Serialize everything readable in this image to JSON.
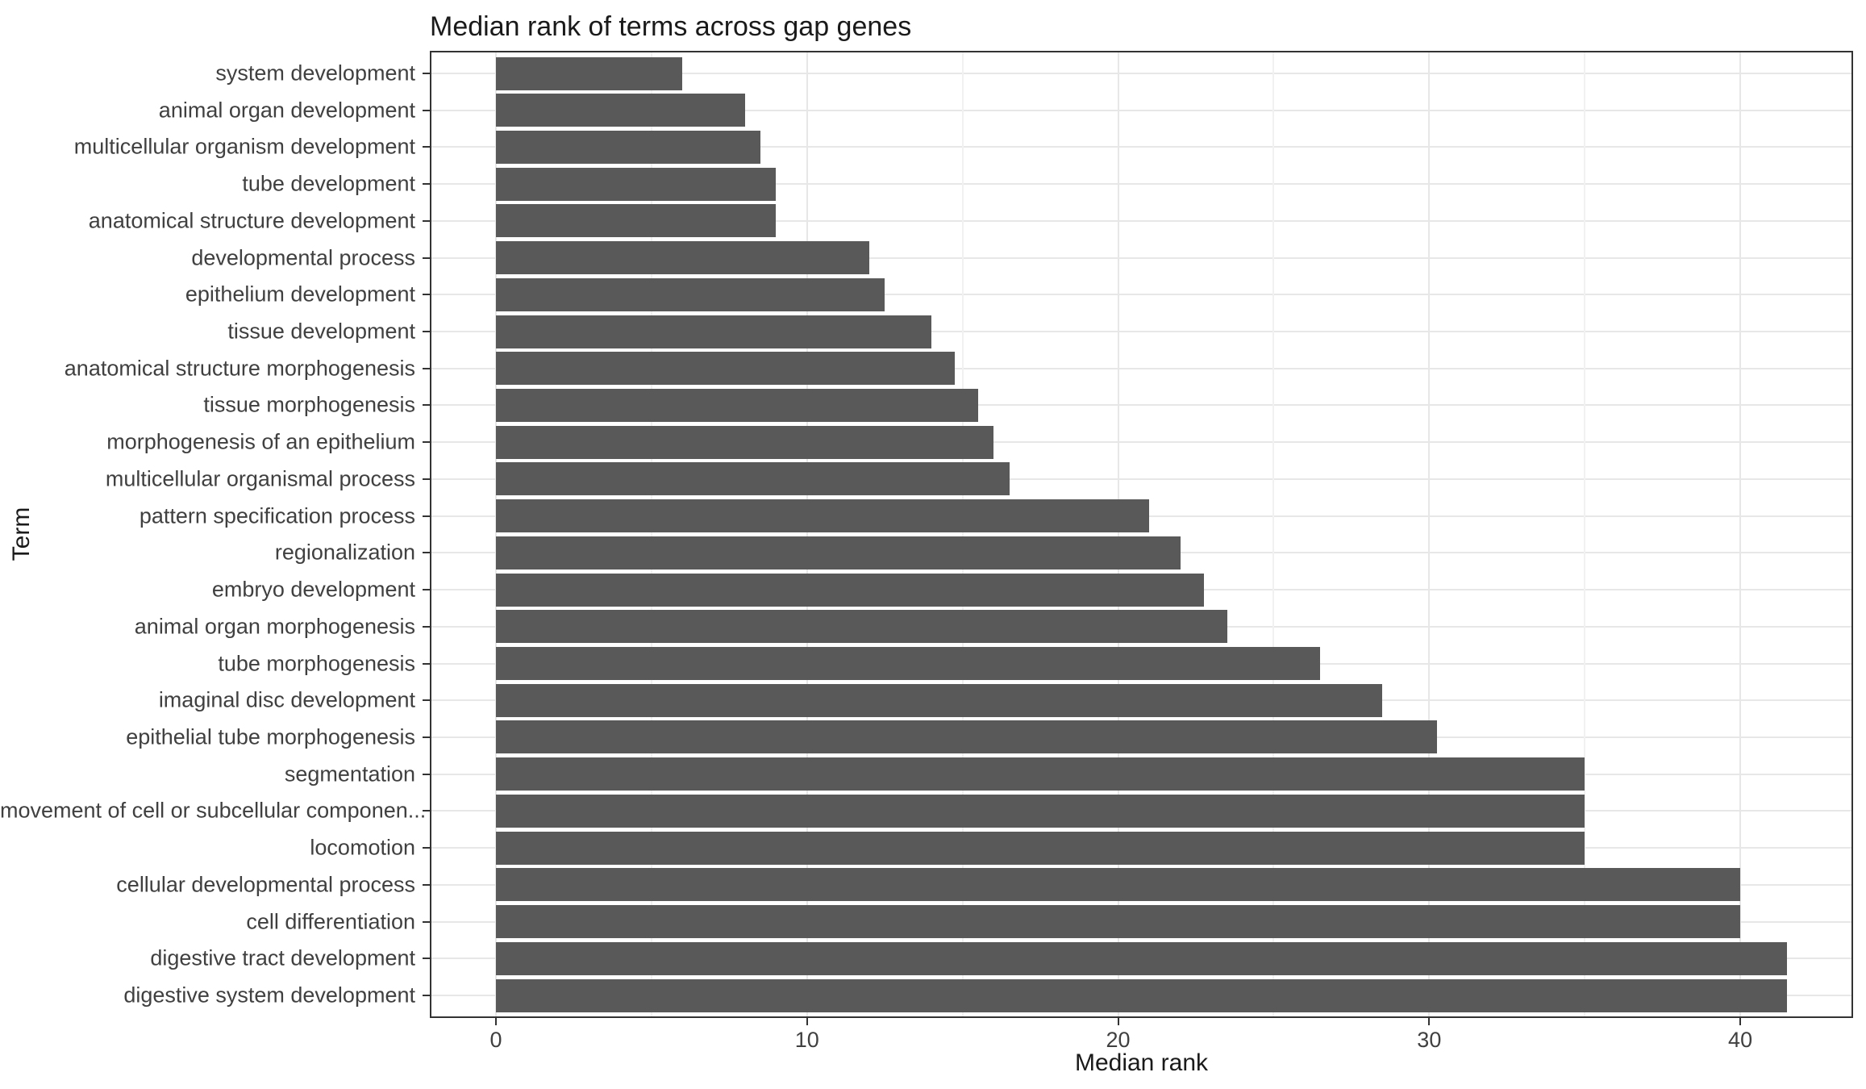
{
  "chart_data": {
    "type": "bar",
    "orientation": "horizontal",
    "title": "Median rank of terms across gap genes",
    "xlabel": "Median rank",
    "ylabel": "Term",
    "categories": [
      "system development",
      "animal organ development",
      "multicellular organism development",
      "tube development",
      "anatomical structure development",
      "developmental process",
      "epithelium development",
      "tissue development",
      "anatomical structure morphogenesis",
      "tissue morphogenesis",
      "morphogenesis of an epithelium",
      "multicellular organismal process",
      "pattern specification process",
      "regionalization",
      "embryo development",
      "animal organ morphogenesis",
      "tube morphogenesis",
      "imaginal disc development",
      "epithelial tube morphogenesis",
      "segmentation",
      "movement of cell or subcellular componen...",
      "locomotion",
      "cellular developmental process",
      "cell differentiation",
      "digestive tract development",
      "digestive system development"
    ],
    "values": [
      6,
      8,
      8.5,
      9,
      9,
      12,
      12.5,
      14,
      14.75,
      15.5,
      16,
      16.5,
      21,
      22,
      22.75,
      23.5,
      26.5,
      28.5,
      30.25,
      35,
      35,
      35,
      40,
      40,
      41.5,
      41.5
    ],
    "x_ticks": [
      0,
      10,
      20,
      30,
      40
    ],
    "x_minor_gridlines": [
      5,
      15,
      25,
      35
    ],
    "x_data_range": [
      0,
      41.5
    ],
    "x_axis_range": [
      -2.075,
      43.575
    ],
    "grid": true,
    "legend": false,
    "colors": {
      "bar": "#595959",
      "grid_major": "#e7e7e7",
      "grid_minor": "#f1f1f1",
      "panel_border": "#333333",
      "axis_tick": "#333333",
      "tick_label": "#404040",
      "axis_title": "#1a1a1a",
      "title": "#1a1a1a",
      "background": "#ffffff"
    }
  }
}
